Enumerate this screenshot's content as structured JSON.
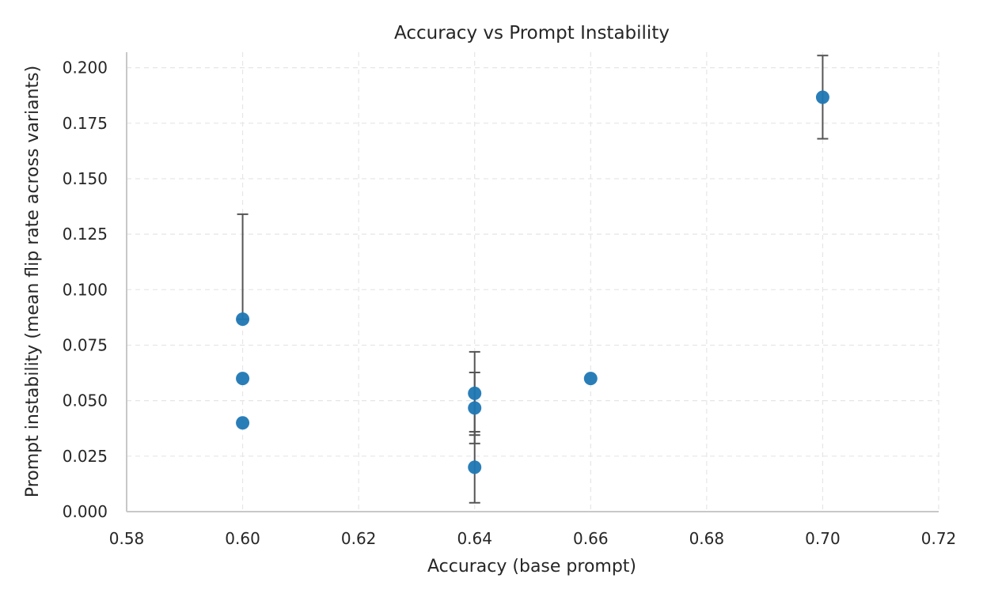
{
  "chart_data": {
    "type": "scatter",
    "title": "Accuracy vs Prompt Instability",
    "xlabel": "Accuracy (base prompt)",
    "ylabel": "Prompt instability (mean flip rate across variants)",
    "xlim": [
      0.58,
      0.72
    ],
    "ylim": [
      0.0,
      0.207
    ],
    "xticks": [
      "0.58",
      "0.60",
      "0.62",
      "0.64",
      "0.66",
      "0.68",
      "0.70",
      "0.72"
    ],
    "yticks": [
      "0.000",
      "0.025",
      "0.050",
      "0.075",
      "0.100",
      "0.125",
      "0.150",
      "0.175",
      "0.200"
    ],
    "grid": true,
    "grid_style": "dashed",
    "marker_color": "#1f77b4",
    "errorbar_color": "#555555",
    "points": [
      {
        "x": 0.6,
        "y": 0.0867,
        "yerr_low": 0.0867,
        "yerr_high": 0.134
      },
      {
        "x": 0.6,
        "y": 0.06,
        "yerr_low": null,
        "yerr_high": null
      },
      {
        "x": 0.6,
        "y": 0.04,
        "yerr_low": null,
        "yerr_high": null
      },
      {
        "x": 0.64,
        "y": 0.0533,
        "yerr_low": 0.0345,
        "yerr_high": 0.072
      },
      {
        "x": 0.64,
        "y": 0.0467,
        "yerr_low": 0.0307,
        "yerr_high": 0.0627
      },
      {
        "x": 0.64,
        "y": 0.02,
        "yerr_low": 0.004,
        "yerr_high": 0.036
      },
      {
        "x": 0.66,
        "y": 0.06,
        "yerr_low": null,
        "yerr_high": null
      },
      {
        "x": 0.7,
        "y": 0.1867,
        "yerr_low": 0.168,
        "yerr_high": 0.2055
      }
    ]
  }
}
